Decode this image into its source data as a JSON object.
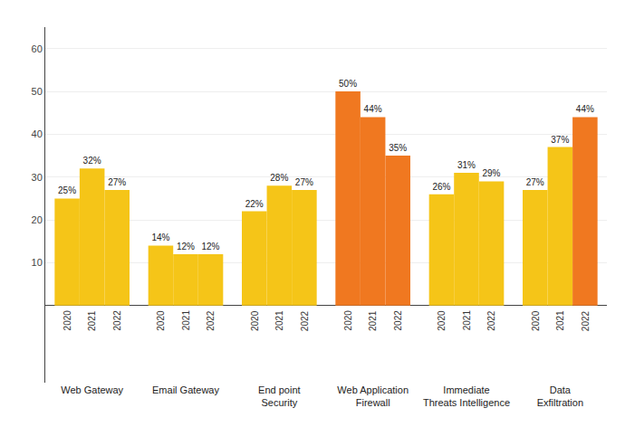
{
  "chart_data": {
    "type": "bar",
    "categories": [
      "Web Gateway",
      "Email Gateway",
      "End point\nSecurity",
      "Web Application\nFirewall",
      "Immediate\nThreats Intelligence",
      "Data\nExfiltration"
    ],
    "series": [
      {
        "name": "2020",
        "values": [
          25,
          14,
          22,
          50,
          26,
          27
        ],
        "value_labels": [
          "25%",
          "14%",
          "22%",
          "50%",
          "26%",
          "27%"
        ],
        "colors": [
          "#F5C518",
          "#F5C518",
          "#F5C518",
          "#F07820",
          "#F5C518",
          "#F5C518"
        ]
      },
      {
        "name": "2021",
        "values": [
          32,
          12,
          28,
          44,
          31,
          37
        ],
        "value_labels": [
          "32%",
          "12%",
          "28%",
          "44%",
          "31%",
          "37%"
        ],
        "colors": [
          "#F5C518",
          "#F5C518",
          "#F5C518",
          "#F07820",
          "#F5C518",
          "#F5C518"
        ]
      },
      {
        "name": "2022",
        "values": [
          27,
          12,
          27,
          35,
          29,
          44
        ],
        "value_labels": [
          "27%",
          "12%",
          "27%",
          "35%",
          "29%",
          "44%"
        ],
        "colors": [
          "#F5C518",
          "#F5C518",
          "#F5C518",
          "#F07820",
          "#F5C518",
          "#F07820"
        ]
      }
    ],
    "ylim": [
      -18,
      65
    ],
    "yticks": [
      10,
      20,
      30,
      40,
      50,
      60
    ],
    "grid": true,
    "data_labels": true
  }
}
